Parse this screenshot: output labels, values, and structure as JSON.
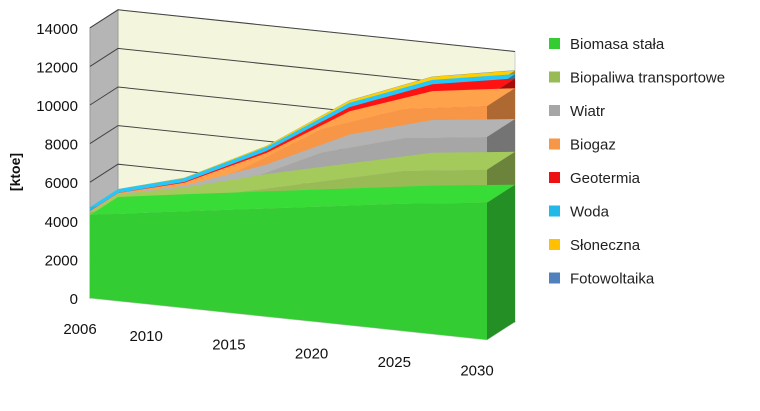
{
  "chart_data": {
    "type": "area",
    "stacked": true,
    "three_d": true,
    "title": "",
    "xlabel": "",
    "ylabel": "[ktoe]",
    "x": [
      2006,
      2010,
      2015,
      2020,
      2025,
      2030
    ],
    "x_ticks": [
      "2006",
      "2010",
      "2015",
      "2020",
      "2025",
      "2030"
    ],
    "ylim": [
      0,
      14000
    ],
    "y_ticks": [
      "0",
      "2000",
      "4000",
      "6000",
      "8000",
      "10000",
      "12000",
      "14000"
    ],
    "legend_position": "right",
    "series": [
      {
        "name": "Biomasa stała",
        "color": "#33cc33",
        "values": [
          4300,
          4800,
          5400,
          6000,
          6600,
          7100
        ]
      },
      {
        "name": "Biopaliwa transportowe",
        "color": "#99bb55",
        "values": [
          150,
          350,
          900,
          1300,
          1700,
          1700
        ]
      },
      {
        "name": "Wiatr",
        "color": "#a6a6a6",
        "values": [
          20,
          100,
          500,
          1500,
          1700,
          1700
        ]
      },
      {
        "name": "Biogaz",
        "color": "#f79646",
        "values": [
          30,
          150,
          600,
          1200,
          1500,
          1600
        ]
      },
      {
        "name": "Geotermia",
        "color": "#ee1111",
        "values": [
          10,
          40,
          100,
          220,
          350,
          500
        ]
      },
      {
        "name": "Woda",
        "color": "#22b8e8",
        "values": [
          200,
          200,
          210,
          220,
          230,
          230
        ]
      },
      {
        "name": "Słoneczna",
        "color": "#ffc000",
        "values": [
          0,
          20,
          60,
          120,
          160,
          180
        ]
      },
      {
        "name": "Fotowoltaika",
        "color": "#4f81bd",
        "values": [
          0,
          0,
          5,
          10,
          15,
          20
        ]
      }
    ]
  }
}
